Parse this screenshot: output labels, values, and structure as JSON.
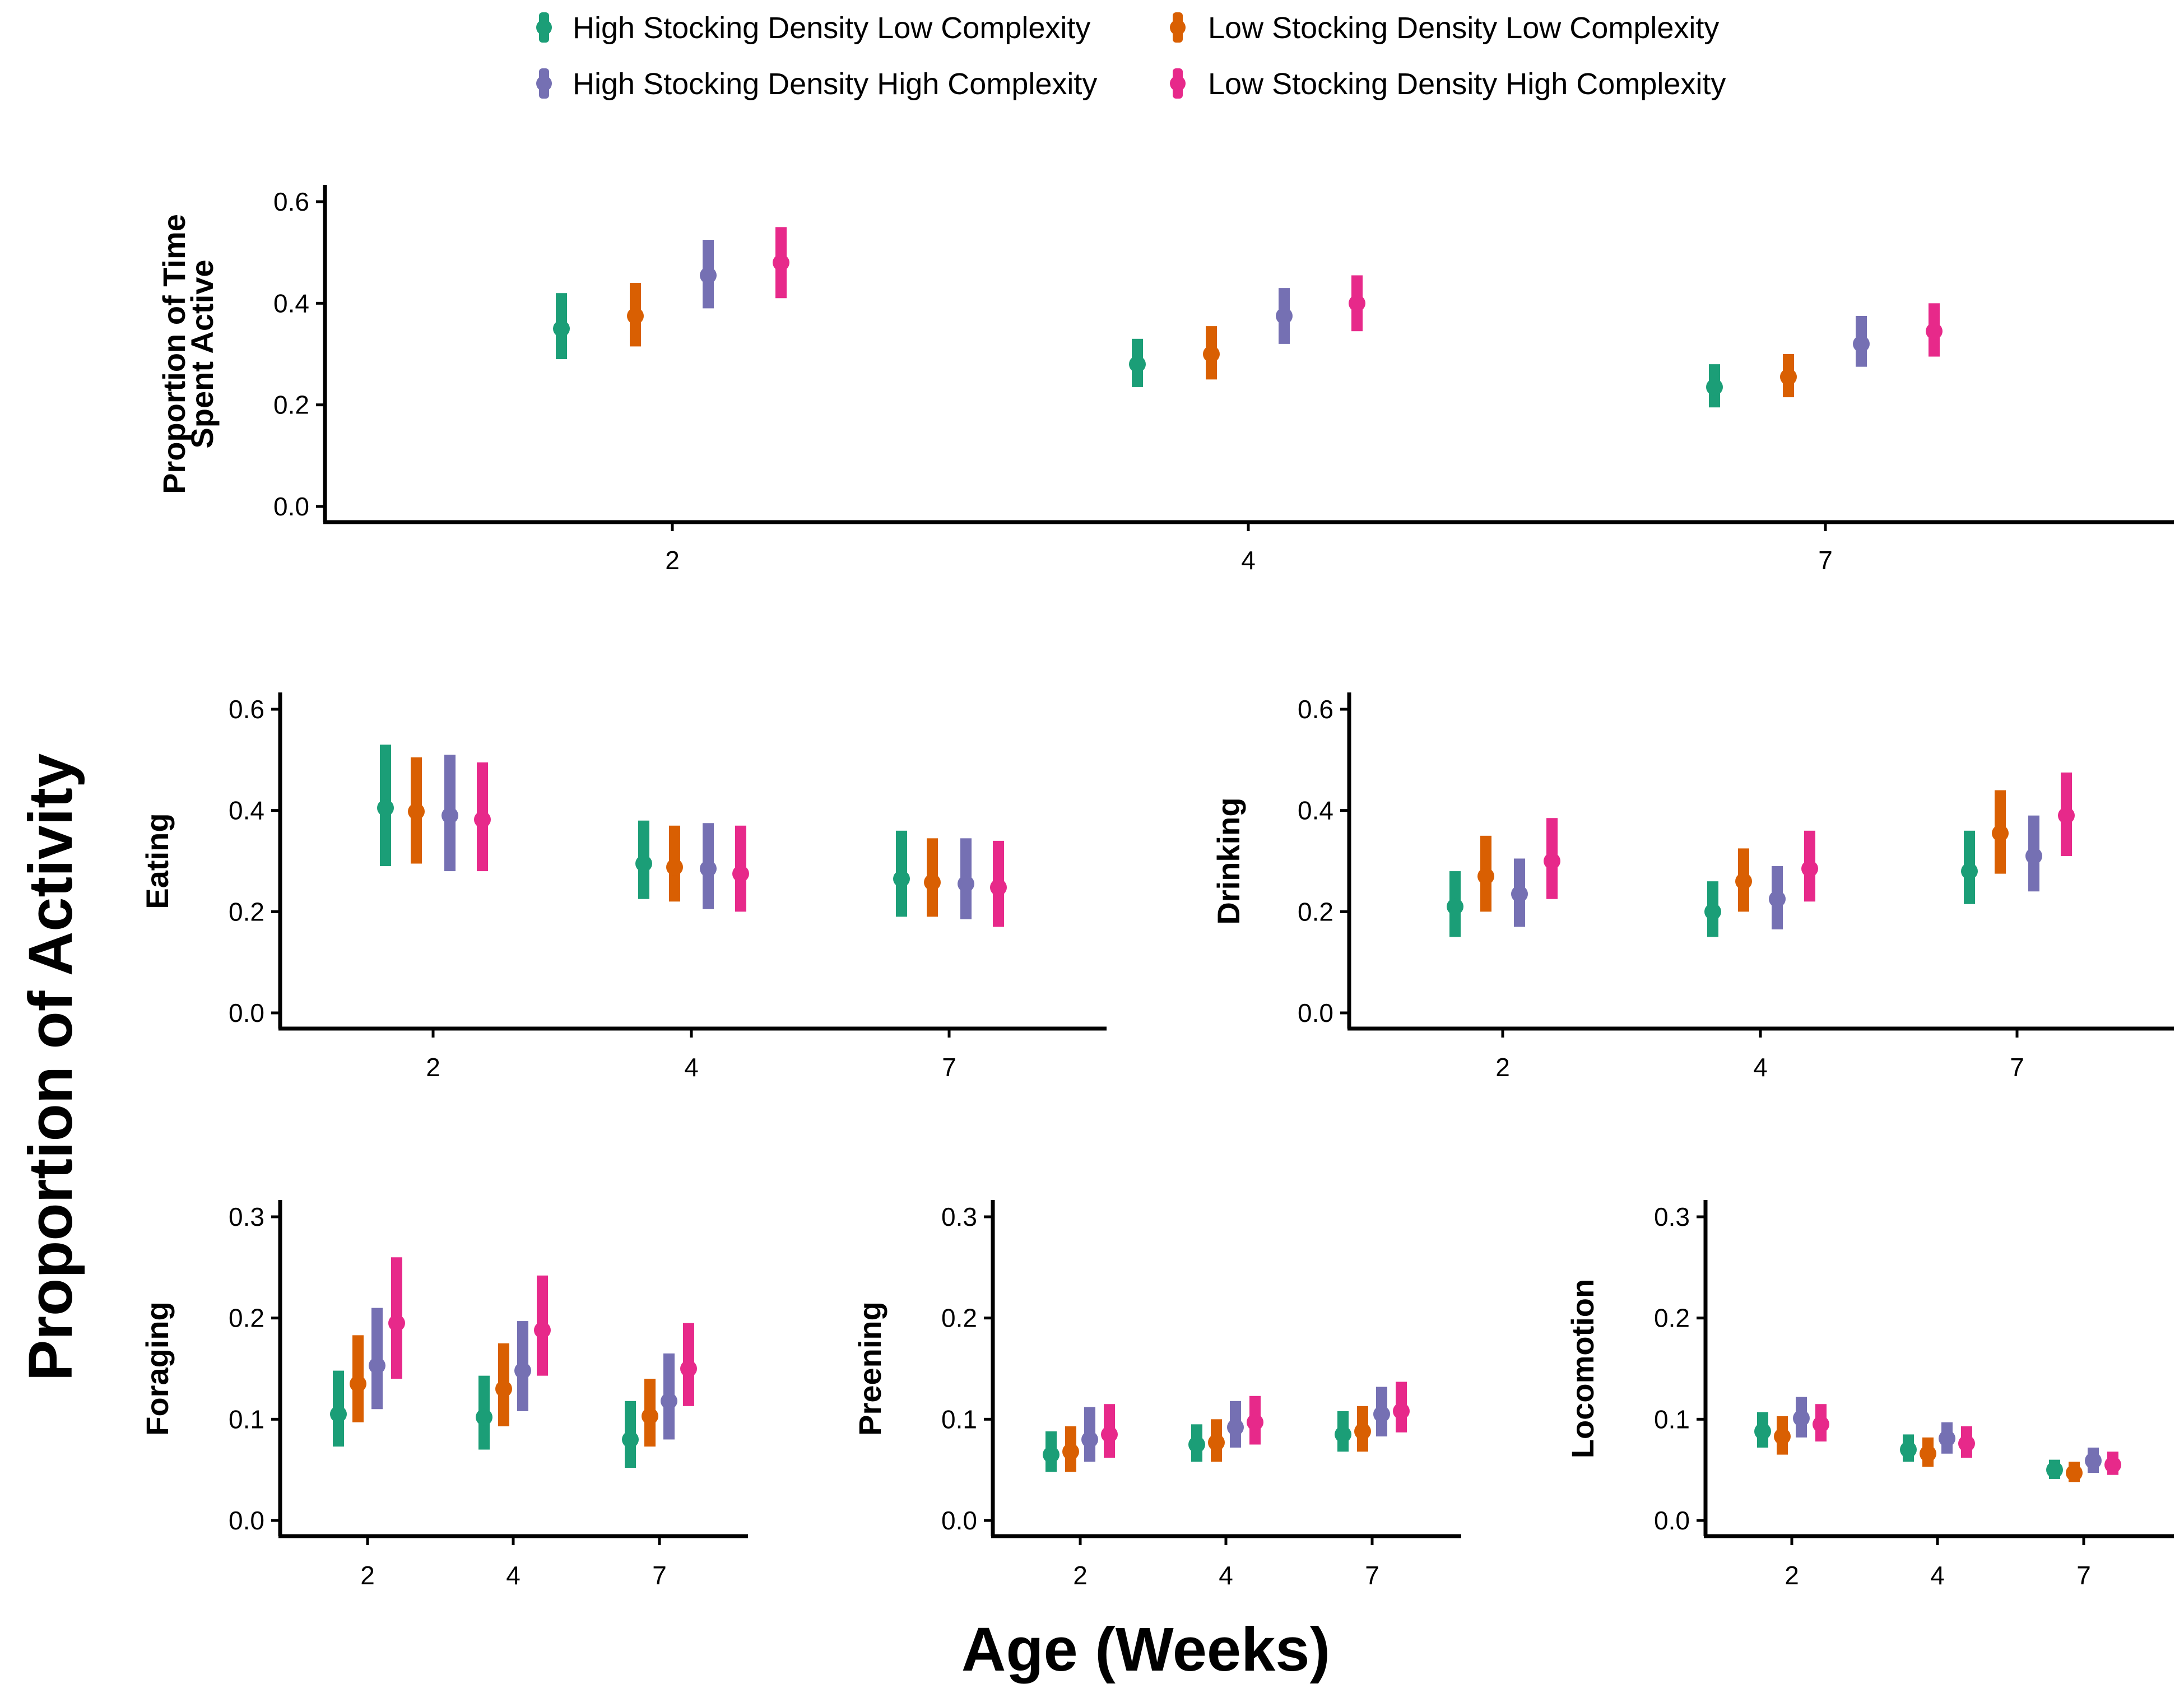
{
  "figure": {
    "global_ylabel": "Proportion of Activity",
    "global_xlabel": "Age (Weeks)"
  },
  "legend": [
    {
      "label": "High Stocking Density Low Complexity",
      "color": "#1b9e77"
    },
    {
      "label": "Low Stocking Density Low Complexity",
      "color": "#d95f02"
    },
    {
      "label": "High Stocking Density High Complexity",
      "color": "#7570b3"
    },
    {
      "label": "Low Stocking Density High Complexity",
      "color": "#e7298a"
    }
  ],
  "chart_data": [
    {
      "type": "scatter",
      "id": "active",
      "ylabel": [
        "Proportion of Time",
        "Spent Active"
      ],
      "categories": [
        "2",
        "4",
        "7"
      ],
      "ylim": [
        0,
        0.6
      ],
      "yticks": [
        "0.0",
        "0.2",
        "0.4",
        "0.6"
      ],
      "series": [
        {
          "name": "High Stocking Density Low Complexity",
          "values": [
            0.35,
            0.28,
            0.235
          ],
          "lower": [
            0.29,
            0.235,
            0.195
          ],
          "upper": [
            0.42,
            0.33,
            0.28
          ]
        },
        {
          "name": "Low Stocking Density Low Complexity",
          "values": [
            0.375,
            0.3,
            0.255
          ],
          "lower": [
            0.315,
            0.25,
            0.215
          ],
          "upper": [
            0.44,
            0.355,
            0.3
          ]
        },
        {
          "name": "High Stocking Density High Complexity",
          "values": [
            0.455,
            0.375,
            0.32
          ],
          "lower": [
            0.39,
            0.32,
            0.275
          ],
          "upper": [
            0.525,
            0.43,
            0.375
          ]
        },
        {
          "name": "Low Stocking Density High Complexity",
          "values": [
            0.48,
            0.4,
            0.345
          ],
          "lower": [
            0.41,
            0.345,
            0.295
          ],
          "upper": [
            0.55,
            0.455,
            0.4
          ]
        }
      ]
    },
    {
      "type": "scatter",
      "id": "eating",
      "ylabel": [
        "Eating"
      ],
      "categories": [
        "2",
        "4",
        "7"
      ],
      "ylim": [
        0,
        0.6
      ],
      "yticks": [
        "0.0",
        "0.2",
        "0.4",
        "0.6"
      ],
      "series": [
        {
          "name": "High Stocking Density Low Complexity",
          "values": [
            0.405,
            0.295,
            0.265
          ],
          "lower": [
            0.29,
            0.225,
            0.19
          ],
          "upper": [
            0.53,
            0.38,
            0.36
          ]
        },
        {
          "name": "Low Stocking Density Low Complexity",
          "values": [
            0.398,
            0.288,
            0.258
          ],
          "lower": [
            0.295,
            0.22,
            0.19
          ],
          "upper": [
            0.505,
            0.37,
            0.345
          ]
        },
        {
          "name": "High Stocking Density High Complexity",
          "values": [
            0.39,
            0.285,
            0.255
          ],
          "lower": [
            0.28,
            0.205,
            0.185
          ],
          "upper": [
            0.51,
            0.375,
            0.345
          ]
        },
        {
          "name": "Low Stocking Density High Complexity",
          "values": [
            0.382,
            0.275,
            0.248
          ],
          "lower": [
            0.28,
            0.2,
            0.17
          ],
          "upper": [
            0.495,
            0.37,
            0.34
          ]
        }
      ]
    },
    {
      "type": "scatter",
      "id": "drinking",
      "ylabel": [
        "Drinking"
      ],
      "categories": [
        "2",
        "4",
        "7"
      ],
      "ylim": [
        0,
        0.6
      ],
      "yticks": [
        "0.0",
        "0.2",
        "0.4",
        "0.6"
      ],
      "series": [
        {
          "name": "High Stocking Density Low Complexity",
          "values": [
            0.21,
            0.2,
            0.28
          ],
          "lower": [
            0.15,
            0.15,
            0.215
          ],
          "upper": [
            0.28,
            0.26,
            0.36
          ]
        },
        {
          "name": "Low Stocking Density Low Complexity",
          "values": [
            0.27,
            0.26,
            0.355
          ],
          "lower": [
            0.2,
            0.2,
            0.275
          ],
          "upper": [
            0.35,
            0.325,
            0.44
          ]
        },
        {
          "name": "High Stocking Density High Complexity",
          "values": [
            0.235,
            0.225,
            0.31
          ],
          "lower": [
            0.17,
            0.165,
            0.24
          ],
          "upper": [
            0.305,
            0.29,
            0.39
          ]
        },
        {
          "name": "Low Stocking Density High Complexity",
          "values": [
            0.3,
            0.285,
            0.39
          ],
          "lower": [
            0.225,
            0.22,
            0.31
          ],
          "upper": [
            0.385,
            0.36,
            0.475
          ]
        }
      ]
    },
    {
      "type": "scatter",
      "id": "foraging",
      "ylabel": [
        "Foraging"
      ],
      "categories": [
        "2",
        "4",
        "7"
      ],
      "ylim": [
        0,
        0.3
      ],
      "yticks": [
        "0.0",
        "0.1",
        "0.2",
        "0.3"
      ],
      "series": [
        {
          "name": "High Stocking Density Low Complexity",
          "values": [
            0.105,
            0.102,
            0.08
          ],
          "lower": [
            0.073,
            0.07,
            0.052
          ],
          "upper": [
            0.148,
            0.143,
            0.118
          ]
        },
        {
          "name": "Low Stocking Density Low Complexity",
          "values": [
            0.135,
            0.13,
            0.103
          ],
          "lower": [
            0.097,
            0.093,
            0.073
          ],
          "upper": [
            0.183,
            0.175,
            0.14
          ]
        },
        {
          "name": "High Stocking Density High Complexity",
          "values": [
            0.153,
            0.148,
            0.118
          ],
          "lower": [
            0.11,
            0.108,
            0.08
          ],
          "upper": [
            0.21,
            0.197,
            0.165
          ]
        },
        {
          "name": "Low Stocking Density High Complexity",
          "values": [
            0.195,
            0.188,
            0.15
          ],
          "lower": [
            0.14,
            0.143,
            0.113
          ],
          "upper": [
            0.26,
            0.242,
            0.195
          ]
        }
      ]
    },
    {
      "type": "scatter",
      "id": "preening",
      "ylabel": [
        "Preening"
      ],
      "categories": [
        "2",
        "4",
        "7"
      ],
      "ylim": [
        0,
        0.3
      ],
      "yticks": [
        "0.0",
        "0.1",
        "0.2",
        "0.3"
      ],
      "series": [
        {
          "name": "High Stocking Density Low Complexity",
          "values": [
            0.065,
            0.075,
            0.085
          ],
          "lower": [
            0.048,
            0.058,
            0.068
          ],
          "upper": [
            0.088,
            0.095,
            0.108
          ]
        },
        {
          "name": "Low Stocking Density Low Complexity",
          "values": [
            0.068,
            0.077,
            0.088
          ],
          "lower": [
            0.048,
            0.058,
            0.068
          ],
          "upper": [
            0.093,
            0.1,
            0.113
          ]
        },
        {
          "name": "High Stocking Density High Complexity",
          "values": [
            0.08,
            0.092,
            0.105
          ],
          "lower": [
            0.058,
            0.072,
            0.083
          ],
          "upper": [
            0.112,
            0.118,
            0.132
          ]
        },
        {
          "name": "Low Stocking Density High Complexity",
          "values": [
            0.085,
            0.097,
            0.108
          ],
          "lower": [
            0.062,
            0.075,
            0.087
          ],
          "upper": [
            0.115,
            0.123,
            0.137
          ]
        }
      ]
    },
    {
      "type": "scatter",
      "id": "locomotion",
      "ylabel": [
        "Locomotion"
      ],
      "categories": [
        "2",
        "4",
        "7"
      ],
      "ylim": [
        0,
        0.3
      ],
      "yticks": [
        "0.0",
        "0.1",
        "0.2",
        "0.3"
      ],
      "series": [
        {
          "name": "High Stocking Density Low Complexity",
          "values": [
            0.088,
            0.07,
            0.05
          ],
          "lower": [
            0.072,
            0.058,
            0.041
          ],
          "upper": [
            0.107,
            0.085,
            0.06
          ]
        },
        {
          "name": "Low Stocking Density Low Complexity",
          "values": [
            0.083,
            0.066,
            0.047
          ],
          "lower": [
            0.065,
            0.053,
            0.038
          ],
          "upper": [
            0.103,
            0.082,
            0.058
          ]
        },
        {
          "name": "High Stocking Density High Complexity",
          "values": [
            0.101,
            0.081,
            0.059
          ],
          "lower": [
            0.082,
            0.066,
            0.047
          ],
          "upper": [
            0.122,
            0.097,
            0.072
          ]
        },
        {
          "name": "Low Stocking Density High Complexity",
          "values": [
            0.095,
            0.076,
            0.055
          ],
          "lower": [
            0.078,
            0.062,
            0.045
          ],
          "upper": [
            0.115,
            0.093,
            0.068
          ]
        }
      ]
    }
  ]
}
